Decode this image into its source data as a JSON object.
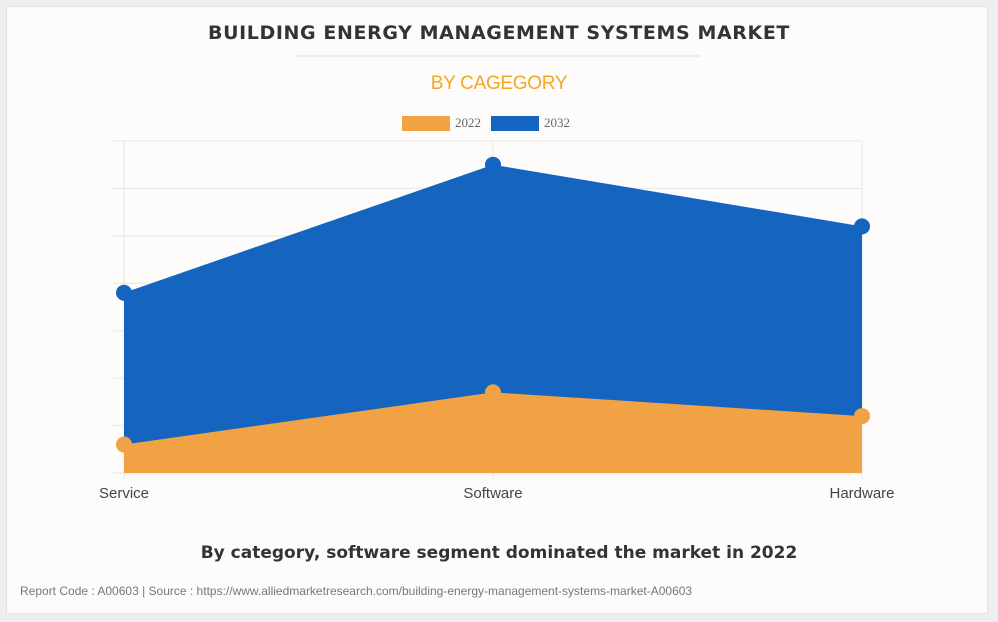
{
  "colors": {
    "series_2022": "#f0a244",
    "series_2032": "#1565c0",
    "subtitle": "#f5a623"
  },
  "chart_data": {
    "type": "area",
    "title": "BUILDING ENERGY MANAGEMENT SYSTEMS MARKET",
    "subtitle": "BY CAGEGORY",
    "categories": [
      "Service",
      "Software",
      "Hardware"
    ],
    "series": [
      {
        "name": "2022",
        "values": [
          0.6,
          1.7,
          1.2
        ]
      },
      {
        "name": "2032",
        "values": [
          3.8,
          6.5,
          5.2
        ]
      }
    ],
    "ylim": [
      0,
      7
    ],
    "grid": true,
    "legend_position": "top-center",
    "xlabel": "",
    "ylabel": ""
  },
  "caption": "By category, software segment dominated the market in 2022",
  "footer": "Report Code : A00603  |  Source : https://www.alliedmarketresearch.com/building-energy-management-systems-market-A00603"
}
